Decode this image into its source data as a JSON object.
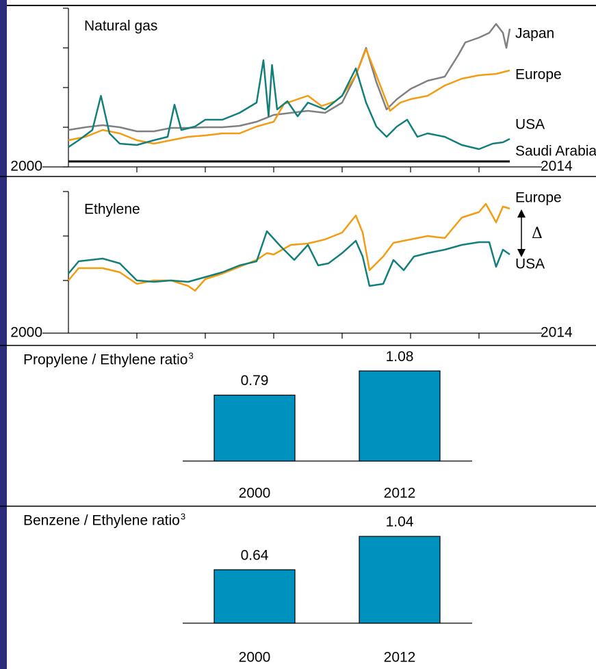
{
  "chart_data": [
    {
      "type": "line",
      "title": "Natural gas",
      "xlim": [
        2000,
        2014
      ],
      "xticks": [
        2000,
        2002,
        2004,
        2006,
        2008,
        2010,
        2012,
        2014
      ],
      "ylim": [
        0,
        232
      ],
      "yticks": [
        0,
        58,
        116,
        174,
        232
      ],
      "series": [
        {
          "name": "Japan",
          "color": "#808080",
          "x": [
            2000,
            2000.5,
            2001,
            2001.5,
            2002,
            2002.5,
            2003,
            2003.5,
            2004,
            2004.5,
            2005,
            2005.5,
            2006,
            2006.5,
            2007,
            2007.5,
            2008,
            2008.4,
            2008.7,
            2009,
            2009.3,
            2009.6,
            2010,
            2010.5,
            2011,
            2011.4,
            2011.6,
            2012,
            2012.3,
            2012.5,
            2012.7,
            2012.8,
            2012.9
          ],
          "values": [
            54,
            58,
            61,
            58,
            52,
            52,
            57,
            57,
            58,
            58,
            60,
            66,
            76,
            79,
            82,
            79,
            94,
            134,
            174,
            124,
            84,
            99,
            114,
            126,
            132,
            164,
            182,
            189,
            196,
            209,
            196,
            174,
            202
          ]
        },
        {
          "name": "Europe",
          "color": "#f39c12",
          "x": [
            2000,
            2000.5,
            2001,
            2001.5,
            2002,
            2002.5,
            2003,
            2003.5,
            2004,
            2004.5,
            2005,
            2005.5,
            2006,
            2006.3,
            2006.7,
            2007,
            2007.4,
            2007.8,
            2008,
            2008.4,
            2008.7,
            2009,
            2009.4,
            2009.7,
            2010,
            2010.5,
            2011,
            2011.5,
            2012,
            2012.5,
            2012.9
          ],
          "values": [
            39,
            44,
            54,
            49,
            39,
            34,
            39,
            44,
            46,
            49,
            49,
            59,
            66,
            92,
            99,
            104,
            89,
            96,
            104,
            134,
            172,
            134,
            82,
            94,
            99,
            104,
            119,
            129,
            134,
            136,
            141
          ]
        },
        {
          "name": "USA",
          "color": "#137f7a",
          "x": [
            2000,
            2000.3,
            2000.7,
            2000.95,
            2001.2,
            2001.5,
            2002,
            2002.5,
            2002.9,
            2003.1,
            2003.3,
            2003.7,
            2004,
            2004.5,
            2005,
            2005.5,
            2005.7,
            2005.85,
            2005.95,
            2006.1,
            2006.4,
            2006.7,
            2007,
            2007.5,
            2008,
            2008.4,
            2008.7,
            2009,
            2009.3,
            2009.6,
            2009.9,
            2010.2,
            2010.5,
            2011,
            2011.5,
            2012,
            2012.4,
            2012.7,
            2012.9
          ],
          "values": [
            29,
            39,
            54,
            104,
            49,
            34,
            32,
            39,
            44,
            91,
            54,
            59,
            69,
            69,
            79,
            94,
            156,
            74,
            149,
            84,
            96,
            74,
            94,
            84,
            104,
            144,
            94,
            59,
            44,
            59,
            69,
            44,
            49,
            44,
            32,
            26,
            34,
            36,
            41
          ]
        },
        {
          "name": "Saudi Arabia",
          "color": "#000000",
          "x": [
            2000,
            2012.9
          ],
          "values": [
            8,
            8
          ]
        }
      ]
    },
    {
      "type": "line",
      "title": "Ethylene",
      "annotation": "Δ",
      "xlim": [
        2000,
        2014
      ],
      "xticks": [
        2000,
        2002,
        2004,
        2006,
        2008,
        2010,
        2012,
        2014
      ],
      "ylim": [
        0,
        207
      ],
      "yticks": [
        77,
        142,
        207
      ],
      "series": [
        {
          "name": "Europe",
          "color": "#f39c12",
          "x": [
            2000,
            2000.3,
            2001,
            2001.5,
            2002,
            2002.5,
            2003,
            2003.5,
            2003.7,
            2004,
            2004.5,
            2005,
            2005.5,
            2005.8,
            2006,
            2006.5,
            2007,
            2007.5,
            2008,
            2008.4,
            2008.6,
            2008.8,
            2009.2,
            2009.5,
            2010,
            2010.5,
            2011,
            2011.5,
            2012,
            2012.2,
            2012.5,
            2012.7,
            2012.9
          ],
          "values": [
            77,
            95,
            95,
            89,
            72,
            77,
            77,
            69,
            62,
            79,
            87,
            97,
            107,
            117,
            115,
            129,
            131,
            137,
            147,
            172,
            147,
            92,
            112,
            132,
            137,
            142,
            139,
            169,
            177,
            189,
            162,
            185,
            182
          ]
        },
        {
          "name": "USA",
          "color": "#137f7a",
          "x": [
            2000,
            2000.3,
            2001,
            2001.5,
            2002,
            2002.5,
            2003,
            2003.5,
            2004,
            2004.5,
            2005,
            2005.5,
            2005.8,
            2006.2,
            2006.6,
            2007,
            2007.3,
            2007.6,
            2008,
            2008.4,
            2008.6,
            2008.8,
            2009.2,
            2009.5,
            2009.8,
            2010.1,
            2010.5,
            2011,
            2011.5,
            2012,
            2012.3,
            2012.5,
            2012.7,
            2012.9
          ],
          "values": [
            87,
            105,
            109,
            102,
            77,
            75,
            77,
            75,
            82,
            89,
            99,
            105,
            149,
            127,
            107,
            129,
            99,
            102,
            117,
            135,
            112,
            69,
            72,
            107,
            92,
            112,
            117,
            122,
            129,
            133,
            133,
            97,
            122,
            115
          ]
        }
      ]
    },
    {
      "type": "bar",
      "title": "Propylene / Ethylene ratio",
      "footnote": "3",
      "categories": [
        "2000",
        "2012"
      ],
      "values": [
        0.79,
        1.08
      ],
      "color": "#0092bf"
    },
    {
      "type": "bar",
      "title": "Benzene / Ethylene ratio",
      "footnote": "3",
      "categories": [
        "2000",
        "2012"
      ],
      "values": [
        0.64,
        1.04
      ],
      "color": "#0092bf"
    }
  ]
}
